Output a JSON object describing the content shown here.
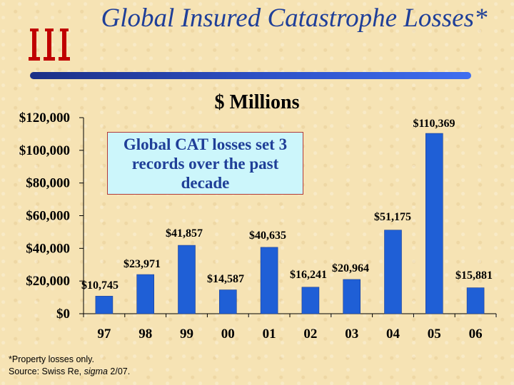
{
  "header": {
    "title": "Global Insured Catastrophe Losses*",
    "logo_icon": "iii-logo"
  },
  "subtitle": "$ Millions",
  "callout": "Global CAT losses set 3 records over the past decade",
  "footnote": {
    "line1": "*Property losses only.",
    "source_prefix": "Source:  Swiss Re, ",
    "source_pub": "sigma",
    "source_date": " 2/07."
  },
  "colors": {
    "bar": "#1f5fd6",
    "title": "#1f3f98",
    "callout_bg": "#ccf6fb"
  },
  "chart_data": {
    "type": "bar",
    "title": "Global Insured Catastrophe Losses*",
    "ylabel": "$ Millions",
    "categories": [
      "97",
      "98",
      "99",
      "00",
      "01",
      "02",
      "03",
      "04",
      "05",
      "06"
    ],
    "values": [
      10745,
      23971,
      41857,
      14587,
      40635,
      16241,
      20964,
      51175,
      110369,
      15881
    ],
    "data_labels": [
      "$10,745",
      "$23,971",
      "$41,857",
      "$14,587",
      "$40,635",
      "$16,241",
      "$20,964",
      "$51,175",
      "$110,369",
      "$15,881"
    ],
    "ylim": [
      0,
      120000
    ],
    "yticks": [
      0,
      20000,
      40000,
      60000,
      80000,
      100000,
      120000
    ],
    "ytick_labels": [
      "$0",
      "$20,000",
      "$40,000",
      "$60,000",
      "$80,000",
      "$100,000",
      "$120,000"
    ],
    "grid": false
  }
}
